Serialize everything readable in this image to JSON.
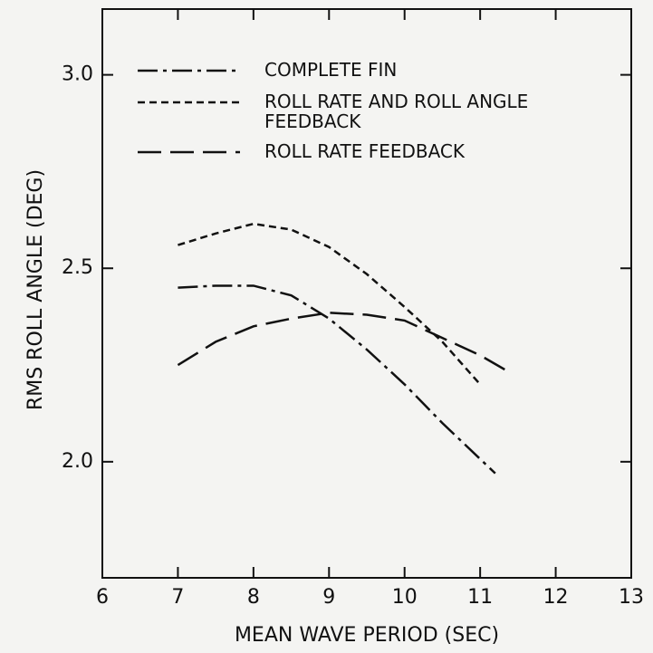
{
  "chart_data": {
    "type": "line",
    "xlabel": "MEAN WAVE PERIOD (SEC)",
    "ylabel": "RMS ROLL ANGLE (DEG)",
    "xlim": [
      6,
      13
    ],
    "xticks": [
      6,
      7,
      8,
      9,
      10,
      11,
      12,
      13
    ],
    "ylim": [
      1.7,
      3.17
    ],
    "yticks": [
      {
        "value": 2,
        "label": "2.0"
      },
      {
        "value": 2.5,
        "label": "2.5"
      },
      {
        "value": 3,
        "label": "3.0"
      }
    ],
    "series": [
      {
        "name": "COMPLETE FIN",
        "color": "#111111",
        "linestyle": "dashdot",
        "x": [
          7,
          7.5,
          8,
          8.5,
          9,
          9.5,
          10,
          10.5,
          11.2
        ],
        "values": [
          2.45,
          2.455,
          2.455,
          2.43,
          2.37,
          2.29,
          2.2,
          2.1,
          1.97
        ]
      },
      {
        "name": "ROLL RATE AND ROLL ANGLE FEEDBACK",
        "color": "#111111",
        "linestyle": "short-dash",
        "x": [
          7,
          7.5,
          8,
          8.5,
          9,
          9.5,
          10,
          10.5,
          11
        ],
        "values": [
          2.56,
          2.59,
          2.615,
          2.6,
          2.555,
          2.485,
          2.4,
          2.31,
          2.2
        ]
      },
      {
        "name": "ROLL RATE FEEDBACK",
        "color": "#111111",
        "linestyle": "long-dash",
        "x": [
          7,
          7.5,
          8,
          8.5,
          9,
          9.5,
          10,
          10.5,
          11,
          11.4
        ],
        "values": [
          2.25,
          2.31,
          2.35,
          2.37,
          2.385,
          2.38,
          2.365,
          2.32,
          2.275,
          2.23
        ]
      }
    ]
  }
}
